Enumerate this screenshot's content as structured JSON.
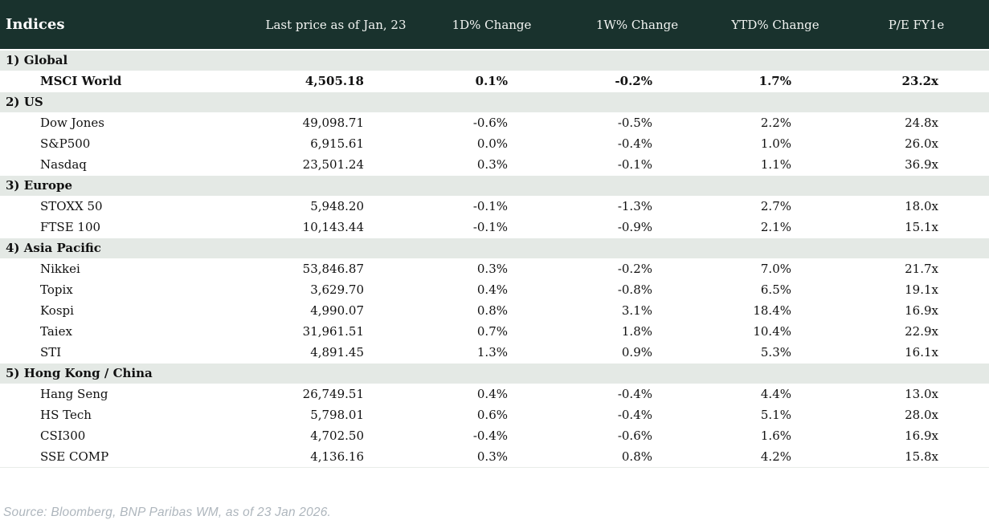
{
  "chart_data": {
    "type": "table",
    "title": "Indices",
    "columns": [
      "Indices",
      "Last price as of Jan, 23",
      "1D% Change",
      "1W% Change",
      "YTD% Change",
      "P/E FY1e"
    ],
    "sections": [
      {
        "label": "1) Global",
        "rows": [
          {
            "name": "MSCI World",
            "price": "4,505.18",
            "d1": "0.1%",
            "w1": "-0.2%",
            "ytd": "1.7%",
            "pe": "23.2x",
            "bold": true
          }
        ]
      },
      {
        "label": "2) US",
        "rows": [
          {
            "name": "Dow Jones",
            "price": "49,098.71",
            "d1": "-0.6%",
            "w1": "-0.5%",
            "ytd": "2.2%",
            "pe": "24.8x"
          },
          {
            "name": "S&P500",
            "price": "6,915.61",
            "d1": "0.0%",
            "w1": "-0.4%",
            "ytd": "1.0%",
            "pe": "26.0x"
          },
          {
            "name": "Nasdaq",
            "price": "23,501.24",
            "d1": "0.3%",
            "w1": "-0.1%",
            "ytd": "1.1%",
            "pe": "36.9x"
          }
        ]
      },
      {
        "label": "3) Europe",
        "rows": [
          {
            "name": "STOXX 50",
            "price": "5,948.20",
            "d1": "-0.1%",
            "w1": "-1.3%",
            "ytd": "2.7%",
            "pe": "18.0x"
          },
          {
            "name": "FTSE 100",
            "price": "10,143.44",
            "d1": "-0.1%",
            "w1": "-0.9%",
            "ytd": "2.1%",
            "pe": "15.1x"
          }
        ]
      },
      {
        "label": "4) Asia Pacific",
        "rows": [
          {
            "name": "Nikkei",
            "price": "53,846.87",
            "d1": "0.3%",
            "w1": "-0.2%",
            "ytd": "7.0%",
            "pe": "21.7x"
          },
          {
            "name": "Topix",
            "price": "3,629.70",
            "d1": "0.4%",
            "w1": "-0.8%",
            "ytd": "6.5%",
            "pe": "19.1x"
          },
          {
            "name": "Kospi",
            "price": "4,990.07",
            "d1": "0.8%",
            "w1": "3.1%",
            "ytd": "18.4%",
            "pe": "16.9x"
          },
          {
            "name": "Taiex",
            "price": "31,961.51",
            "d1": "0.7%",
            "w1": "1.8%",
            "ytd": "10.4%",
            "pe": "22.9x"
          },
          {
            "name": "STI",
            "price": "4,891.45",
            "d1": "1.3%",
            "w1": "0.9%",
            "ytd": "5.3%",
            "pe": "16.1x"
          }
        ]
      },
      {
        "label": "5) Hong Kong / China",
        "rows": [
          {
            "name": "Hang Seng",
            "price": "26,749.51",
            "d1": "0.4%",
            "w1": "-0.4%",
            "ytd": "4.4%",
            "pe": "13.0x"
          },
          {
            "name": "HS Tech",
            "price": "5,798.01",
            "d1": "0.6%",
            "w1": "-0.4%",
            "ytd": "5.1%",
            "pe": "28.0x"
          },
          {
            "name": "CSI300",
            "price": "4,702.50",
            "d1": "-0.4%",
            "w1": "-0.6%",
            "ytd": "1.6%",
            "pe": "16.9x"
          },
          {
            "name": "SSE COMP",
            "price": "4,136.16",
            "d1": "0.3%",
            "w1": "0.8%",
            "ytd": "4.2%",
            "pe": "15.8x"
          }
        ]
      }
    ]
  },
  "footer": {
    "source": "Source: Bloomberg, BNP Paribas WM, as of 23 Jan 2026."
  },
  "colors": {
    "header_bg": "#19322d",
    "section_bg": "#e4e9e5",
    "positive": "#00843d",
    "negative": "#c8102e"
  }
}
